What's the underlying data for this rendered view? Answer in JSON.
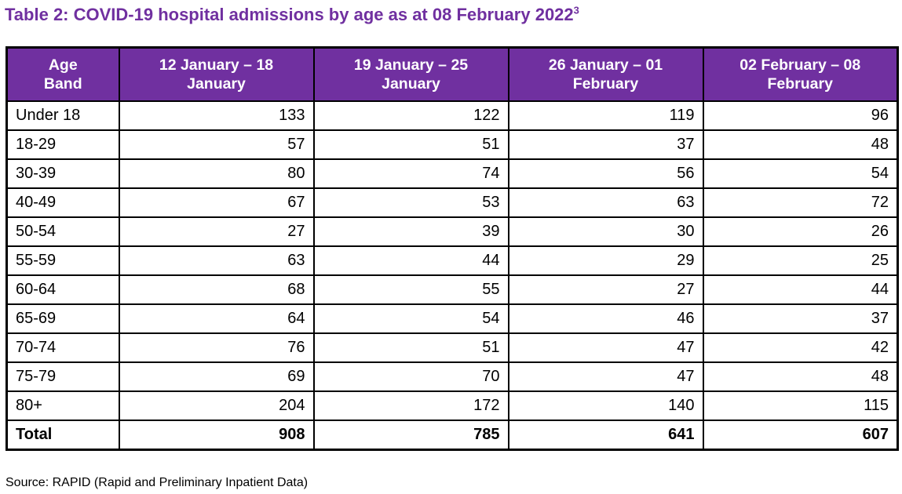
{
  "title": {
    "text": "Table 2: COVID-19 hospital admissions by age as at 08 February 2022",
    "footnote_marker": "3"
  },
  "colors": {
    "accent_purple": "#7030A0",
    "header_text": "#ffffff",
    "body_text": "#000000",
    "border": "#000000"
  },
  "table": {
    "headers": [
      {
        "line1": "Age",
        "line2": "Band"
      },
      {
        "line1": "12 January – 18",
        "line2": "January"
      },
      {
        "line1": "19 January – 25",
        "line2": "January"
      },
      {
        "line1": "26 January – 01",
        "line2": "February"
      },
      {
        "line1": "02 February – 08",
        "line2": "February"
      }
    ],
    "rows": [
      {
        "age": "Under 18",
        "values": [
          "133",
          "122",
          "119",
          "96"
        ]
      },
      {
        "age": "18-29",
        "values": [
          "57",
          "51",
          "37",
          "48"
        ]
      },
      {
        "age": "30-39",
        "values": [
          "80",
          "74",
          "56",
          "54"
        ]
      },
      {
        "age": "40-49",
        "values": [
          "67",
          "53",
          "63",
          "72"
        ]
      },
      {
        "age": "50-54",
        "values": [
          "27",
          "39",
          "30",
          "26"
        ]
      },
      {
        "age": "55-59",
        "values": [
          "63",
          "44",
          "29",
          "25"
        ]
      },
      {
        "age": "60-64",
        "values": [
          "68",
          "55",
          "27",
          "44"
        ]
      },
      {
        "age": "65-69",
        "values": [
          "64",
          "54",
          "46",
          "37"
        ]
      },
      {
        "age": "70-74",
        "values": [
          "76",
          "51",
          "47",
          "42"
        ]
      },
      {
        "age": "75-79",
        "values": [
          "69",
          "70",
          "47",
          "48"
        ]
      },
      {
        "age": "80+",
        "values": [
          "204",
          "172",
          "140",
          "115"
        ]
      }
    ],
    "total": {
      "label": "Total",
      "values": [
        "908",
        "785",
        "641",
        "607"
      ]
    }
  },
  "source": "Source: RAPID (Rapid and Preliminary Inpatient Data)"
}
